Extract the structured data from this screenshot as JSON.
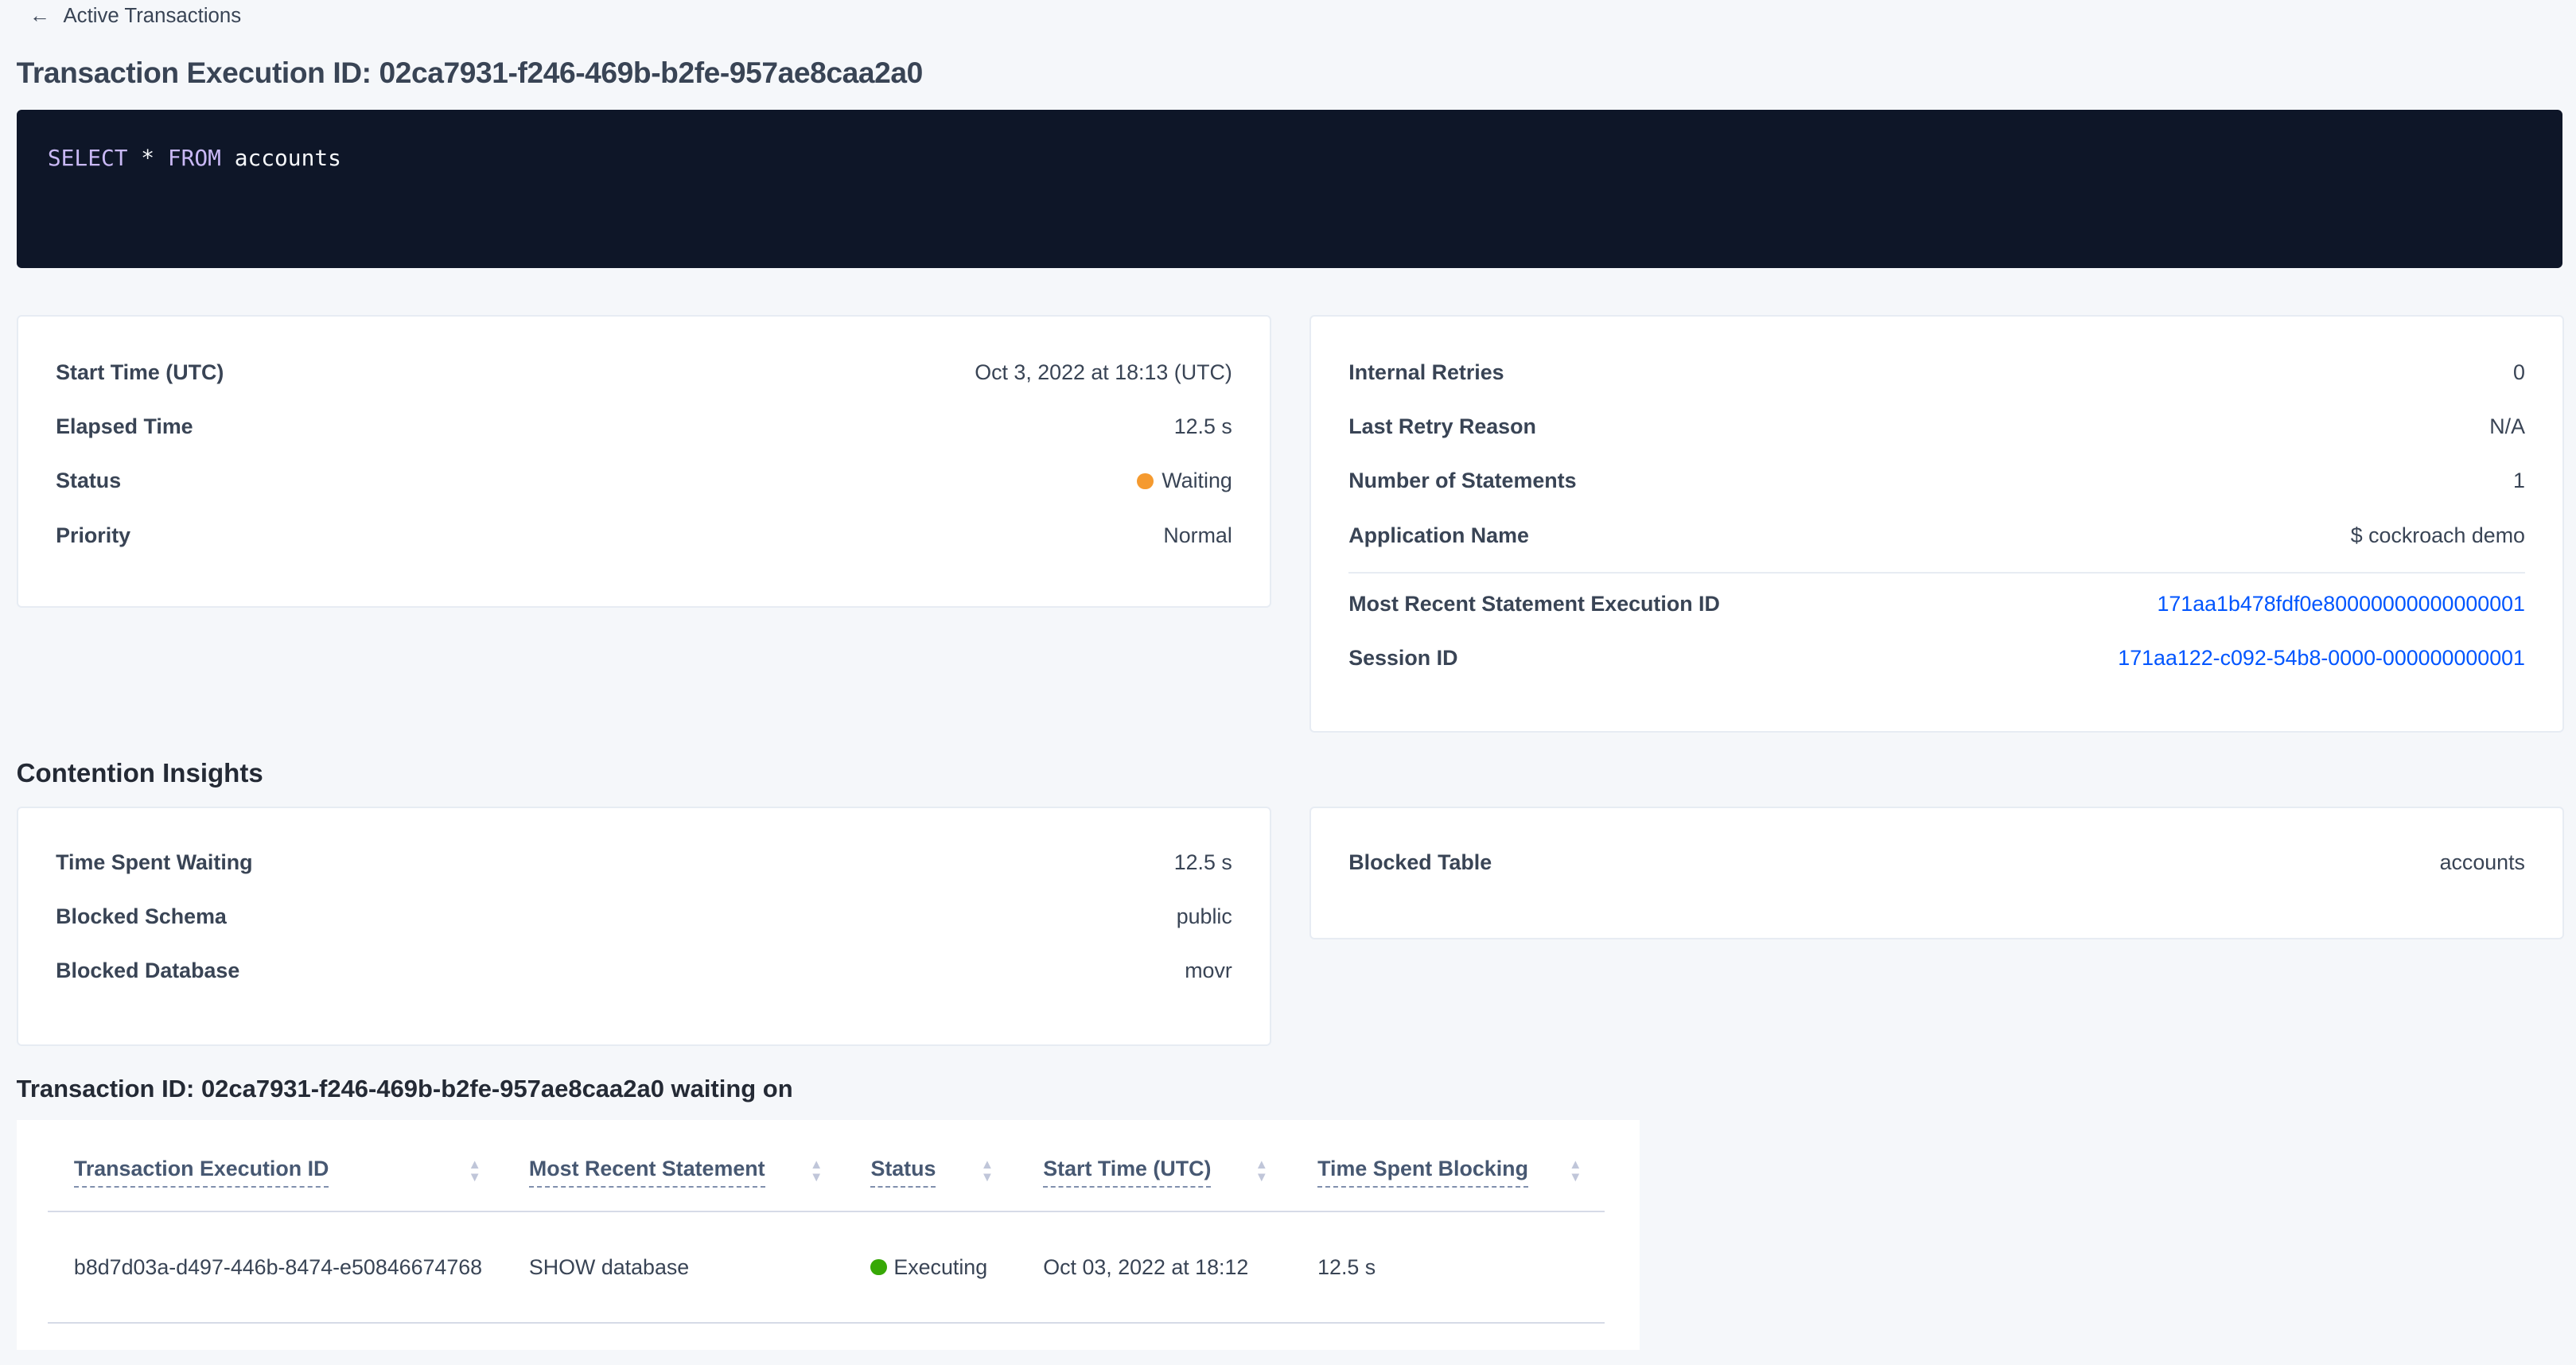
{
  "breadcrumb": {
    "back_label": "Active Transactions",
    "icon": "arrow-left-icon"
  },
  "page_title": "Transaction Execution ID: 02ca7931-f246-469b-b2fe-957ae8caa2a0",
  "sql": {
    "tokens": [
      {
        "text": "SELECT",
        "kw": true
      },
      {
        "text": " * ",
        "kw": false
      },
      {
        "text": "FROM",
        "kw": true
      },
      {
        "text": " accounts",
        "kw": false
      }
    ]
  },
  "summary_left": {
    "rows": [
      {
        "label": "Start Time (UTC)",
        "value": "Oct 3, 2022 at 18:13 (UTC)"
      },
      {
        "label": "Elapsed Time",
        "value": "12.5 s"
      },
      {
        "label": "Status",
        "value": "Waiting",
        "dot_color": "#f59a2f"
      },
      {
        "label": "Priority",
        "value": "Normal"
      }
    ]
  },
  "summary_right": {
    "rows": [
      {
        "label": "Internal Retries",
        "value": "0"
      },
      {
        "label": "Last Retry Reason",
        "value": "N/A"
      },
      {
        "label": "Number of Statements",
        "value": "1"
      },
      {
        "label": "Application Name",
        "value": "$ cockroach demo"
      }
    ],
    "link_rows": [
      {
        "label": "Most Recent Statement Execution ID",
        "value": "171aa1b478fdf0e80000000000000001"
      },
      {
        "label": "Session ID",
        "value": "171aa122-c092-54b8-0000-000000000001"
      }
    ]
  },
  "contention": {
    "heading": "Contention Insights",
    "left": [
      {
        "label": "Time Spent Waiting",
        "value": "12.5 s"
      },
      {
        "label": "Blocked Schema",
        "value": "public"
      },
      {
        "label": "Blocked Database",
        "value": "movr"
      }
    ],
    "right": [
      {
        "label": "Blocked Table",
        "value": "accounts"
      }
    ]
  },
  "waiting": {
    "heading": "Transaction ID: 02ca7931-f246-469b-b2fe-957ae8caa2a0 waiting on",
    "columns": [
      "Transaction Execution ID",
      "Most Recent Statement",
      "Status",
      "Start Time (UTC)",
      "Time Spent Blocking"
    ],
    "rows": [
      {
        "id": "b8d7d03a-d497-446b-8474-e50846674768",
        "statement": "SHOW database",
        "status": "Executing",
        "status_color": "#37a806",
        "start": "Oct 03, 2022 at 18:12",
        "blocking": "12.5 s"
      }
    ]
  },
  "colors": {
    "code_bg": "#0e1628",
    "link": "#0055ff",
    "keyword": "#c9b8f5"
  }
}
